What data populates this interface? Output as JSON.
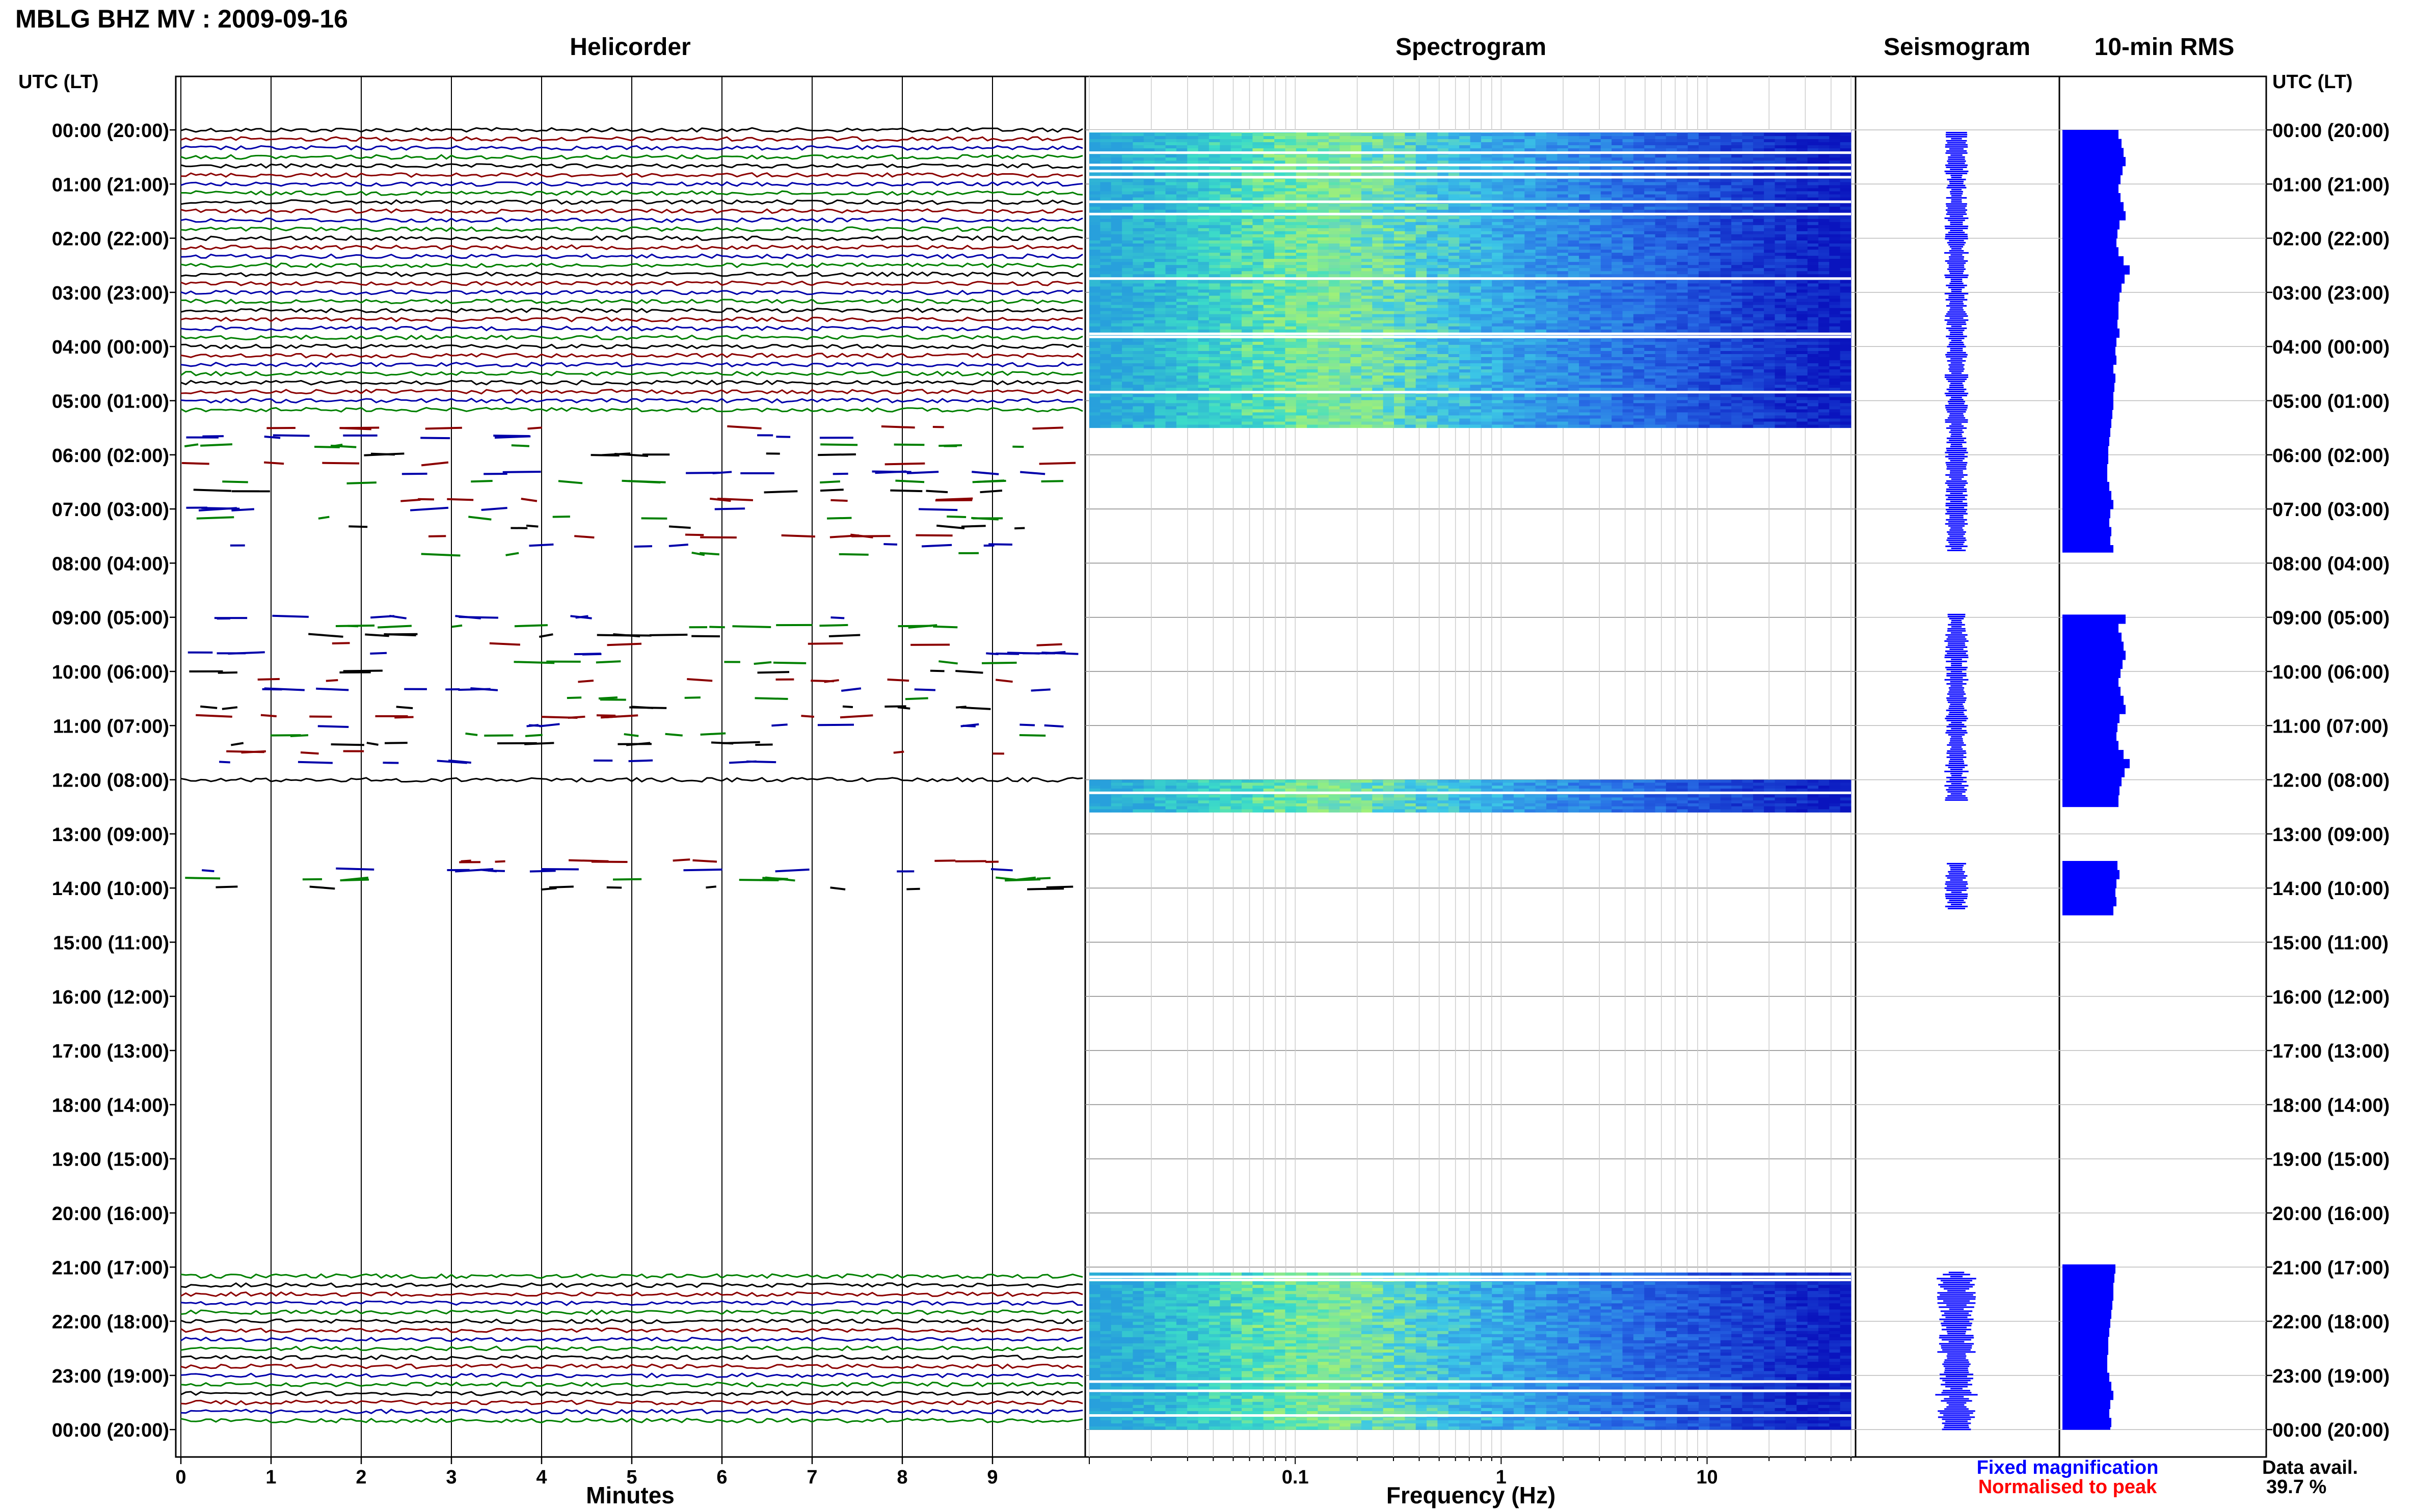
{
  "header": {
    "title": "MBLG BHZ MV : 2009-09-16",
    "helicorder_title": "Helicorder",
    "spectrogram_title": "Spectrogram",
    "seismogram_title": "Seismogram",
    "rms_title": "10-min RMS",
    "utc_lt_left": "UTC (LT)",
    "utc_lt_right": "UTC (LT)"
  },
  "footer": {
    "minutes_label": "Minutes",
    "frequency_label": "Frequency (Hz)",
    "fixed_magnification": "Fixed magnification",
    "normalised_to_peak": "Normalised to peak",
    "data_avail_label": "Data avail.",
    "data_avail_value": "39.7 %"
  },
  "colors": {
    "trace_cycle": [
      "#000000",
      "#8b0000",
      "#0000aa",
      "#008000"
    ],
    "fixed_magnification": "#0000ff",
    "normalised_to_peak": "#ff0000",
    "rms_bar": "#0000ff"
  },
  "chart_data": {
    "type": "heatmap",
    "time_labels": [
      "00:00 (20:00)",
      "01:00 (21:00)",
      "02:00 (22:00)",
      "03:00 (23:00)",
      "04:00 (00:00)",
      "05:00 (01:00)",
      "06:00 (02:00)",
      "07:00 (03:00)",
      "08:00 (04:00)",
      "09:00 (05:00)",
      "10:00 (06:00)",
      "11:00 (07:00)",
      "12:00 (08:00)",
      "13:00 (09:00)",
      "14:00 (10:00)",
      "15:00 (11:00)",
      "16:00 (12:00)",
      "17:00 (13:00)",
      "18:00 (14:00)",
      "19:00 (15:00)",
      "20:00 (16:00)",
      "21:00 (17:00)",
      "22:00 (18:00)",
      "23:00 (19:00)",
      "00:00 (20:00)"
    ],
    "helicorder": {
      "x_ticks": [
        "0",
        "1",
        "2",
        "3",
        "4",
        "5",
        "6",
        "7",
        "8",
        "9"
      ],
      "xlim": [
        0,
        10
      ],
      "xlabel": "Minutes",
      "continuous_hours": [
        [
          0,
          5.4
        ],
        [
          11.9,
          12.3
        ],
        [
          21.1,
          24
        ]
      ],
      "gappy_hours": [
        [
          5.4,
          8.0
        ],
        [
          9.0,
          11.9
        ],
        [
          13.5,
          14.3
        ]
      ]
    },
    "spectrogram": {
      "x_ticks": [
        "0.1",
        "1",
        "10"
      ],
      "xlabel": "Frequency (Hz)",
      "scale": "log",
      "xlim": [
        0.01,
        50
      ],
      "data_bands_hours": [
        [
          0,
          5.5
        ],
        [
          12.0,
          12.6
        ],
        [
          21.1,
          24
        ]
      ]
    },
    "seismogram": {
      "segments_hours": [
        [
          0.05,
          7.8
        ],
        [
          8.95,
          12.4
        ],
        [
          13.55,
          14.4
        ],
        [
          21.1,
          24
        ]
      ]
    },
    "rms_10min": {
      "segments_hours": [
        [
          0.0,
          7.8
        ],
        [
          8.95,
          12.5
        ],
        [
          13.5,
          14.5
        ],
        [
          20.95,
          24
        ]
      ],
      "relative_levels": [
        0.55,
        0.58,
        0.6,
        0.62,
        0.59,
        0.57,
        0.55,
        0.57,
        0.6,
        0.62,
        0.56,
        0.54,
        0.53,
        0.55,
        0.6,
        0.66,
        0.61,
        0.58,
        0.56,
        0.55,
        0.55,
        0.54,
        0.56,
        0.53,
        0.52,
        0.53,
        0.5,
        0.52,
        0.51,
        0.5,
        0.5,
        0.49,
        0.48,
        0.47,
        0.46,
        0.45,
        0.45,
        0.44,
        0.44,
        0.46,
        0.48,
        0.5,
        0.47,
        0.46,
        0.48,
        0.47,
        0.5,
        0.62
      ]
    },
    "data_available_percent": 39.7
  }
}
